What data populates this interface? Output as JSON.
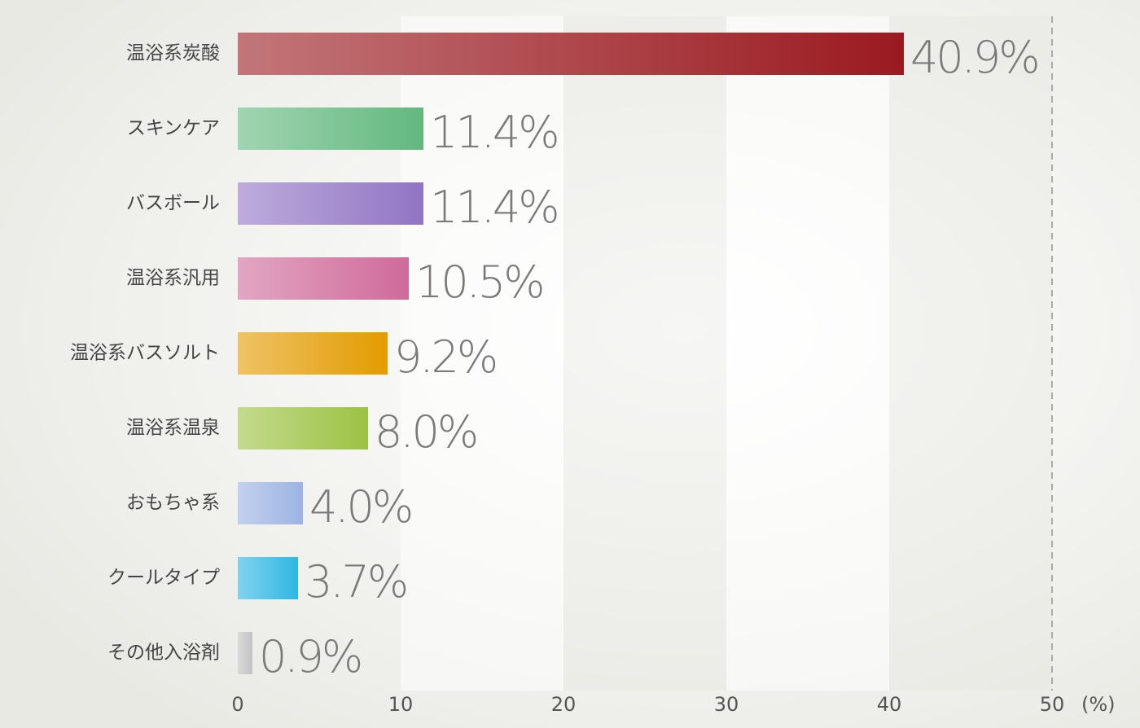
{
  "chart_data": {
    "type": "bar",
    "orientation": "horizontal",
    "categories": [
      "温浴系炭酸",
      "スキンケア",
      "バスボール",
      "温浴系汎用",
      "温浴系バスソルト",
      "温浴系温泉",
      "おもちゃ系",
      "クールタイプ",
      "その他入浴剤"
    ],
    "values": [
      40.9,
      11.4,
      11.4,
      10.5,
      9.2,
      8.0,
      4.0,
      3.7,
      0.9
    ],
    "value_labels": [
      "40.9%",
      "11.4%",
      "11.4%",
      "10.5%",
      "9.2%",
      "8.0%",
      "4.0%",
      "3.7%",
      "0.9%"
    ],
    "colors": [
      "#9a1a20",
      "#63b87e",
      "#9174c4",
      "#cf6a9a",
      "#e39b00",
      "#9cc243",
      "#9cb3e3",
      "#2fb6e3",
      "#c2c2c2"
    ],
    "xlim": [
      0,
      50
    ],
    "xticks": [
      0,
      10,
      20,
      30,
      40,
      50
    ],
    "xlabel": "(%)"
  }
}
